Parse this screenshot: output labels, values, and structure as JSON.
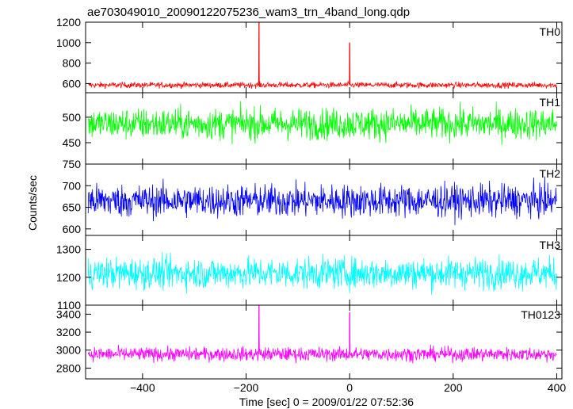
{
  "chart_data": {
    "type": "line",
    "title": "ae703049010_20090122075236_wam3_trn_4band_long.qdp",
    "xlabel": "Time [sec] 0 = 2009/01/22 07:52:36",
    "ylabel": "Counts/sec",
    "xlim": [
      -510,
      410
    ],
    "x_ticks": [
      -400,
      -200,
      0,
      200,
      400
    ],
    "panels": [
      {
        "name": "TH0",
        "color": "#ff0000",
        "ylim": [
          510,
          1200
        ],
        "yticks": [
          600,
          800,
          1000,
          1200
        ],
        "mean": 585,
        "noise": 20,
        "spikes": [
          {
            "x": -175,
            "y": 1200
          },
          {
            "x": 0,
            "y": 1000
          }
        ]
      },
      {
        "name": "TH1",
        "color": "#00ff00",
        "ylim": [
          408,
          548
        ],
        "yticks": [
          450,
          500
        ],
        "mean": 487,
        "noise": 22,
        "spikes": []
      },
      {
        "name": "TH2",
        "color": "#0000ff",
        "ylim": [
          585,
          750
        ],
        "yticks": [
          600,
          650,
          700,
          750
        ],
        "mean": 665,
        "noise": 27,
        "spikes": []
      },
      {
        "name": "TH3",
        "color": "#00ffff",
        "ylim": [
          1100,
          1350
        ],
        "yticks": [
          1100,
          1200,
          1300
        ],
        "mean": 1215,
        "noise": 40,
        "spikes": []
      },
      {
        "name": "TH0123",
        "color": "#ff00ff",
        "ylim": [
          2680,
          3500
        ],
        "yticks": [
          2800,
          3000,
          3200,
          3400
        ],
        "mean": 2955,
        "noise": 55,
        "spikes": [
          {
            "x": -175,
            "y": 3520
          },
          {
            "x": 0,
            "y": 3420
          }
        ]
      }
    ]
  }
}
